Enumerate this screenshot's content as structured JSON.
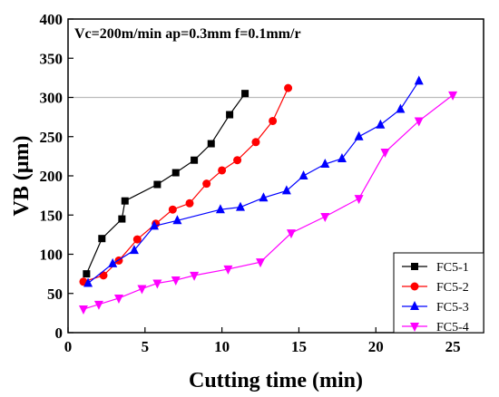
{
  "chart_data": {
    "type": "line",
    "title": "",
    "annotation": "Vc=200m/min  ap=0.3mm  f=0.1mm/r",
    "xlabel": "Cutting time (min)",
    "ylabel": "VB (μm)",
    "xlim": [
      0,
      27
    ],
    "ylim": [
      0,
      400
    ],
    "xticks": [
      0,
      5,
      10,
      15,
      20,
      25
    ],
    "yticks": [
      0,
      50,
      100,
      150,
      200,
      250,
      300,
      350,
      400
    ],
    "reference_line": {
      "y": 300,
      "color": "#bbbbbb"
    },
    "legend": {
      "position": "bottom-right"
    },
    "series": [
      {
        "name": "FC5-1",
        "color": "#000000",
        "marker": "square",
        "x": [
          1.2,
          2.2,
          3.5,
          3.7,
          5.8,
          7.0,
          8.2,
          9.3,
          10.5,
          11.5
        ],
        "y": [
          75,
          120,
          145,
          168,
          189,
          204,
          220,
          241,
          278,
          305
        ]
      },
      {
        "name": "FC5-2",
        "color": "#ff0000",
        "marker": "circle",
        "x": [
          1.0,
          2.3,
          3.3,
          4.5,
          5.7,
          6.8,
          7.9,
          9.0,
          10.0,
          11.0,
          12.2,
          13.3,
          14.3
        ],
        "y": [
          65,
          73,
          92,
          119,
          139,
          157,
          165,
          190,
          207,
          220,
          243,
          270,
          312
        ]
      },
      {
        "name": "FC5-3",
        "color": "#0000ff",
        "marker": "triangle",
        "x": [
          1.3,
          2.9,
          4.3,
          5.6,
          7.1,
          9.9,
          11.2,
          12.7,
          14.2,
          15.3,
          16.7,
          17.8,
          18.9,
          20.3,
          21.6,
          22.8
        ],
        "y": [
          63,
          88,
          105,
          136,
          143,
          157,
          160,
          172,
          181,
          200,
          215,
          222,
          250,
          265,
          285,
          321
        ]
      },
      {
        "name": "FC5-4",
        "color": "#ff00ff",
        "marker": "triangle-down",
        "x": [
          1.0,
          2.0,
          3.3,
          4.8,
          5.8,
          7.0,
          8.2,
          10.4,
          12.5,
          14.5,
          16.7,
          18.9,
          20.6,
          22.8,
          25.0
        ],
        "y": [
          30,
          36,
          44,
          56,
          63,
          67,
          73,
          81,
          90,
          127,
          148,
          171,
          230,
          270,
          303
        ]
      }
    ]
  }
}
